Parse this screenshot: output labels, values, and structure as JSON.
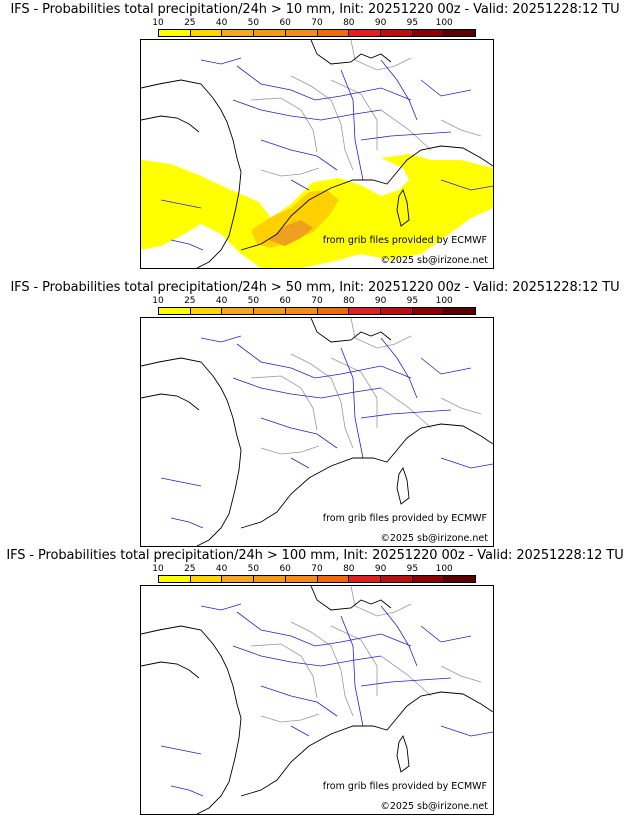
{
  "panels": [
    {
      "title": "IFS - Probabilities total precipitation/24h > 10 mm, Init: 20251220 00z - Valid: 20251228:12 TU",
      "has_precip": true
    },
    {
      "title": "IFS - Probabilities total precipitation/24h > 50 mm, Init: 20251220 00z - Valid: 20251228:12 TU",
      "has_precip": false
    },
    {
      "title": "IFS - Probabilities total precipitation/24h > 100 mm, Init: 20251220 00z - Valid: 20251228:12 TU",
      "has_precip": false
    }
  ],
  "legend": {
    "ticks": [
      "10",
      "25",
      "40",
      "50",
      "60",
      "70",
      "80",
      "90",
      "95",
      "100"
    ],
    "colors": [
      "#ffff00",
      "#ffd700",
      "#f5a623",
      "#f29a1a",
      "#f28c1a",
      "#f06a0a",
      "#e02020",
      "#b81010",
      "#8b0000",
      "#5a0000"
    ]
  },
  "credits": {
    "source": "from grib files provided by ECMWF",
    "copyright": "©2025 sb@irizone.net"
  },
  "map_colors": {
    "coast": "#000000",
    "rivers": "#2222dd",
    "borders": "#999999",
    "precip_light": "#ffff00",
    "precip_mid": "#ffd000",
    "precip_high": "#f0a020"
  }
}
